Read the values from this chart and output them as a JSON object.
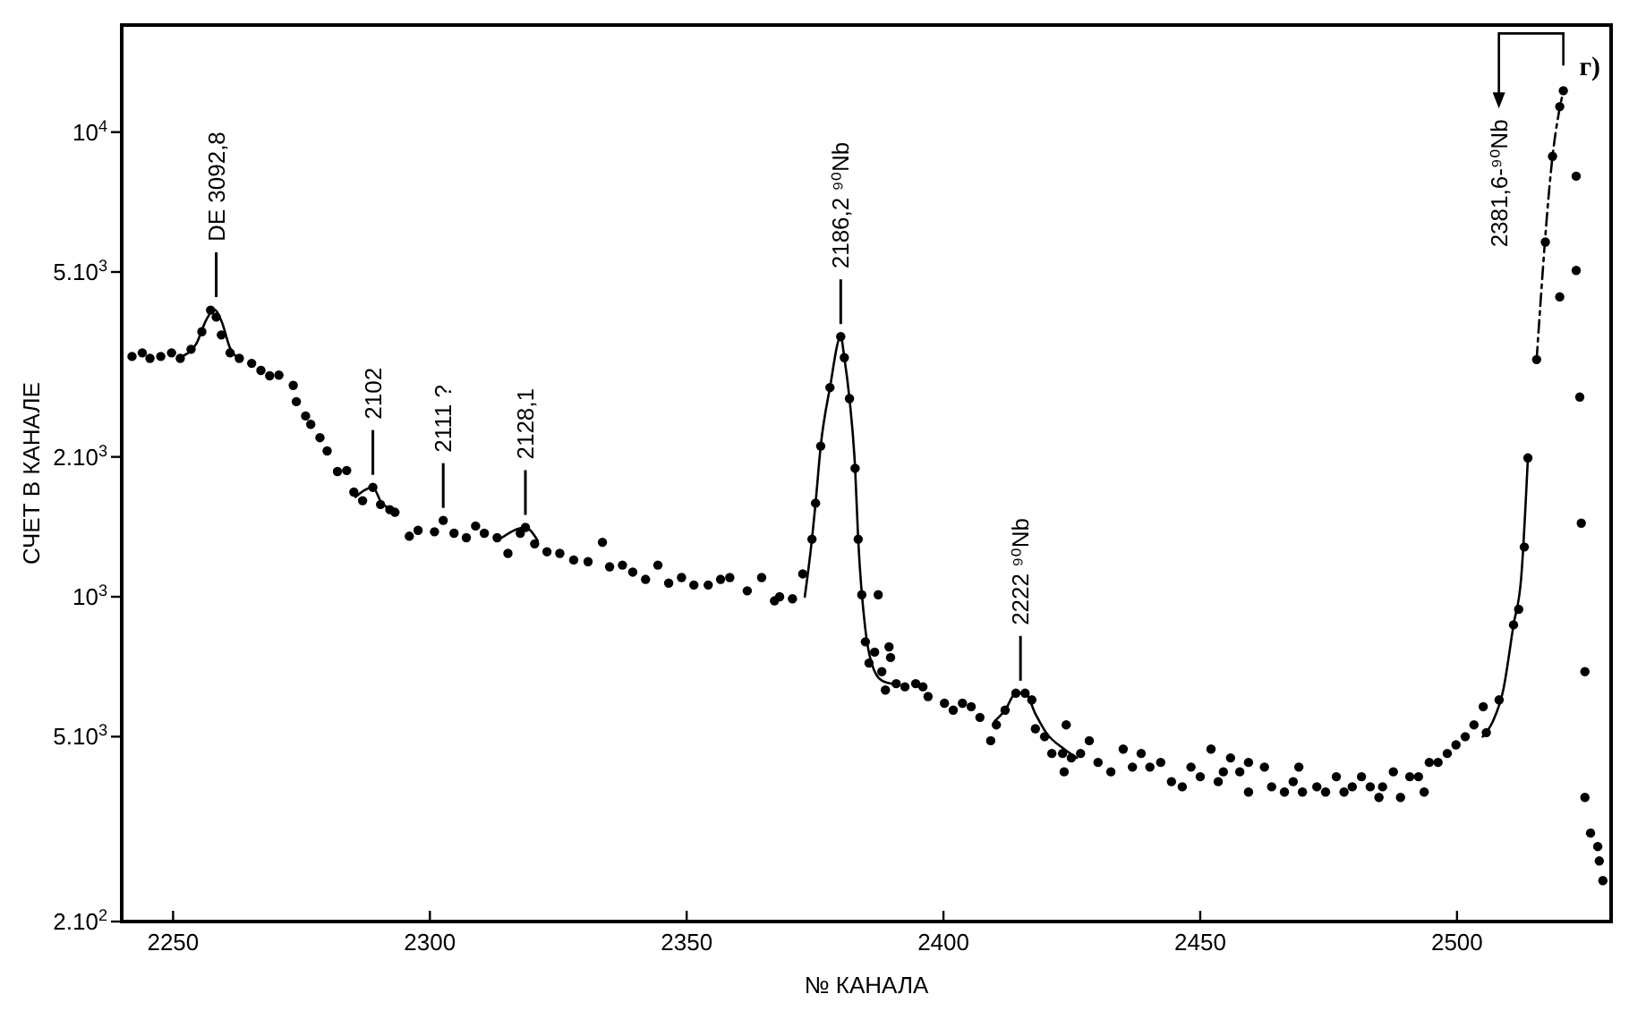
{
  "chart_data": {
    "type": "scatter",
    "xlabel": "№ КАНАЛА",
    "ylabel": "СЧЕТ В КАНАЛЕ",
    "log": true,
    "xlim": [
      2240,
      2530
    ],
    "xticks": [
      2250,
      2300,
      2350,
      2400,
      2450,
      2500
    ],
    "ylim": [
      200,
      17000
    ],
    "yticks": [
      {
        "value": 10000,
        "label": "10$^{4}$"
      },
      {
        "value": 5000,
        "label": "5.10$^{3}$"
      },
      {
        "value": 2000,
        "label": "2.10$^{3}$"
      },
      {
        "value": 1000,
        "label": "10$^{3}$"
      },
      {
        "value": 500,
        "label": "5.10$^{3}$"
      },
      {
        "value": 200,
        "label": "2.10$^{2}$"
      }
    ],
    "series": [
      {
        "marker": "circle",
        "color": "#000000",
        "x": [
          2242,
          2244,
          2245.5,
          2247.6,
          2249.7,
          2251.4,
          2253.5,
          2255.6,
          2257.3,
          2258.4,
          2259.4,
          2261.1,
          2262.9,
          2265.3,
          2267.1,
          2268.8,
          2270.6,
          2273.4,
          2274,
          2275.8,
          2276.8,
          2278.6,
          2280,
          2282,
          2283.8,
          2285.2,
          2286.9,
          2288.9,
          2290.4,
          2292.2,
          2293.2,
          2296,
          2297.7,
          2300.9,
          2302.6,
          2304.7,
          2307.1,
          2308.9,
          2310.6,
          2313.1,
          2315.2,
          2317.6,
          2318.6,
          2320.4,
          2322.8,
          2325.3,
          2328,
          2330.8,
          2333.6,
          2335,
          2337.5,
          2339.5,
          2342,
          2344.4,
          2346.5,
          2349,
          2351.4,
          2354.2,
          2356.6,
          2358.4,
          2361.8,
          2364.6,
          2367.1,
          2368.1,
          2370.6,
          2372.6,
          2374.4,
          2375.1,
          2376.1,
          2377.9,
          2380,
          2380.7,
          2381.7,
          2382.8,
          2383.4,
          2384.1,
          2384.8,
          2385.5,
          2386.6,
          2387.3,
          2388,
          2388.7,
          2389.4,
          2389.7,
          2390.8,
          2392.5,
          2394.6,
          2396,
          2397,
          2400.2,
          2401.9,
          2403.7,
          2405.4,
          2407.1,
          2409.2,
          2410.3,
          2412,
          2414.1,
          2415.9,
          2417.2,
          2417.9,
          2419.7,
          2421.1,
          2423.2,
          2423.5,
          2423.9,
          2424.9,
          2426.7,
          2428.4,
          2430.1,
          2432.6,
          2435,
          2436.8,
          2438.5,
          2440.2,
          2442.3,
          2444.4,
          2446.5,
          2448.2,
          2450,
          2452.1,
          2453.5,
          2454.5,
          2455.9,
          2457.7,
          2459.4,
          2459.4,
          2462.5,
          2463.9,
          2466.4,
          2468.1,
          2469.2,
          2469.9,
          2472.7,
          2474.4,
          2476.5,
          2478,
          2479.6,
          2481.4,
          2483.1,
          2484.8,
          2485.5,
          2487.6,
          2489,
          2490.8,
          2492.5,
          2493.6,
          2494.6,
          2496.3,
          2498.1,
          2499.8,
          2501.6,
          2503.3,
          2505.1,
          2505.7,
          2508.2,
          2511,
          2512,
          2513.1,
          2513.8,
          2515.5,
          2517.2,
          2518.6,
          2520,
          2520.7,
          2520,
          2523.2,
          2523.2,
          2523.9,
          2524.2,
          2524.9,
          2524.9,
          2526,
          2527.4,
          2527.7,
          2528.4
        ],
        "values": [
          3290,
          3350,
          3260,
          3290,
          3350,
          3260,
          3410,
          3720,
          4140,
          4000,
          3660,
          3350,
          3260,
          3180,
          3070,
          2990,
          3000,
          2850,
          2630,
          2450,
          2350,
          2200,
          2060,
          1860,
          1870,
          1680,
          1610,
          1720,
          1580,
          1540,
          1520,
          1350,
          1390,
          1380,
          1460,
          1370,
          1340,
          1420,
          1370,
          1340,
          1240,
          1370,
          1410,
          1300,
          1250,
          1240,
          1200,
          1190,
          1310,
          1160,
          1170,
          1130,
          1090,
          1170,
          1070,
          1100,
          1060,
          1060,
          1090,
          1100,
          1030,
          1100,
          980,
          1000,
          990,
          1120,
          1330,
          1590,
          2110,
          2820,
          3630,
          3270,
          2670,
          1890,
          1330,
          1010,
          800,
          720,
          760,
          1010,
          690,
          630,
          780,
          740,
          650,
          640,
          650,
          640,
          610,
          590,
          570,
          590,
          580,
          550,
          490,
          530,
          570,
          620,
          620,
          600,
          520,
          500,
          460,
          460,
          420,
          530,
          450,
          460,
          490,
          440,
          420,
          470,
          430,
          460,
          430,
          440,
          400,
          390,
          430,
          410,
          470,
          400,
          420,
          450,
          420,
          440,
          380,
          430,
          390,
          380,
          400,
          430,
          380,
          390,
          380,
          410,
          380,
          390,
          410,
          390,
          370,
          390,
          420,
          370,
          410,
          410,
          380,
          440,
          440,
          460,
          480,
          500,
          530,
          580,
          510,
          600,
          870,
          940,
          1280,
          1990,
          3240,
          5800,
          8870,
          11350,
          12280,
          4420,
          8040,
          5040,
          2690,
          1440,
          690,
          370,
          310,
          290,
          270,
          245
        ]
      },
      {
        "type": "line",
        "color": "#000000",
        "x": [
          2252,
          2254.5,
          2256.5,
          2258,
          2259.5,
          2261,
          2263
        ],
        "values": [
          3300,
          3500,
          3950,
          4150,
          3900,
          3450,
          3250
        ]
      },
      {
        "type": "line",
        "color": "#000000",
        "x": [
          2285.5,
          2288.9,
          2290.5,
          2292.5
        ],
        "values": [
          1640,
          1720,
          1600,
          1540
        ]
      },
      {
        "type": "line",
        "color": "#000000",
        "x": [
          2314,
          2318.6,
          2321
        ],
        "values": [
          1340,
          1410,
          1320
        ]
      },
      {
        "type": "line",
        "color": "#000000",
        "x": [
          2373,
          2374.4,
          2375.1,
          2376.1,
          2377.9,
          2380,
          2380.7,
          2381.7,
          2382.8,
          2383.4,
          2384.8,
          2386,
          2388,
          2390
        ],
        "values": [
          1000,
          1330,
          1590,
          2110,
          2820,
          3630,
          3270,
          2670,
          1890,
          1330,
          850,
          720,
          660,
          650
        ]
      },
      {
        "type": "line",
        "color": "#000000",
        "x": [
          2410,
          2412,
          2414.1,
          2415.9,
          2417.9,
          2420,
          2423.5,
          2426
        ],
        "values": [
          540,
          570,
          620,
          620,
          560,
          510,
          470,
          450
        ]
      },
      {
        "type": "line",
        "color": "#000000",
        "x": [
          2505,
          2507,
          2509,
          2511,
          2512.5,
          2513.8
        ],
        "values": [
          500,
          540,
          630,
          870,
          1100,
          1990
        ]
      },
      {
        "type": "line",
        "color": "#000000",
        "line_style": "dashed",
        "x": [
          2515.5,
          2518.6,
          2520.7
        ],
        "values": [
          3240,
          8870,
          12280
        ]
      }
    ],
    "annotations": [
      {
        "text": "DE 3092,8",
        "x": 2258.4,
        "y": 4150
      },
      {
        "text": "2102",
        "x": 2288.9,
        "y": 1720
      },
      {
        "text": "2111 ?",
        "x": 2302.6,
        "y": 1460
      },
      {
        "text": "2128,1",
        "x": 2318.6,
        "y": 1410
      },
      {
        "text": "2186,2 ⁹⁰Nb",
        "x": 2380,
        "y": 3630
      },
      {
        "text": "2222 ⁹⁰Nb",
        "x": 2415,
        "y": 620
      },
      {
        "text": "2381,6-⁹⁰Nb",
        "x": 2520.7,
        "y": 12280
      },
      "г)"
    ]
  }
}
